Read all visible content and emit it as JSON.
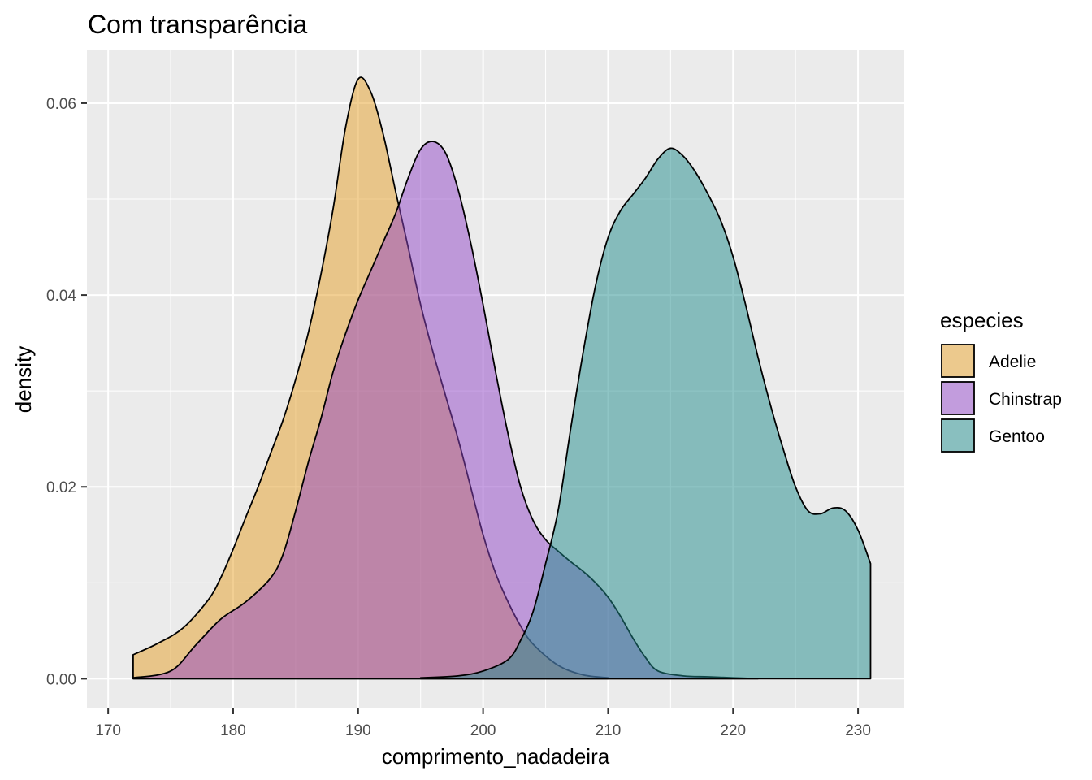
{
  "chart_data": {
    "type": "area",
    "title": "Com transparência",
    "xlabel": "comprimento_nadadeira",
    "ylabel": "density",
    "xlim": [
      168.3,
      233.7
    ],
    "ylim": [
      -0.0031,
      0.0655
    ],
    "x_ticks": [
      170,
      180,
      190,
      200,
      210,
      220,
      230
    ],
    "y_ticks": [
      0.0,
      0.02,
      0.04,
      0.06
    ],
    "x_tick_labels": [
      "170",
      "180",
      "190",
      "200",
      "210",
      "220",
      "230"
    ],
    "y_tick_labels": [
      "0.00",
      "0.02",
      "0.04",
      "0.06"
    ],
    "grid": true,
    "legend": {
      "title": "especies",
      "position": "right"
    },
    "fill_opacity": 0.5,
    "series": [
      {
        "name": "Adelie",
        "color": "#E69F28",
        "points": [
          [
            172,
            0.0025
          ],
          [
            174,
            0.0037
          ],
          [
            176,
            0.0053
          ],
          [
            178,
            0.0082
          ],
          [
            179,
            0.0105
          ],
          [
            180,
            0.0135
          ],
          [
            181,
            0.0168
          ],
          [
            182,
            0.02
          ],
          [
            183,
            0.0235
          ],
          [
            184,
            0.027
          ],
          [
            185,
            0.0312
          ],
          [
            186,
            0.036
          ],
          [
            187,
            0.042
          ],
          [
            188,
            0.049
          ],
          [
            189,
            0.0575
          ],
          [
            190,
            0.0625
          ],
          [
            191,
            0.0612
          ],
          [
            192,
            0.0568
          ],
          [
            193,
            0.0508
          ],
          [
            194,
            0.045
          ],
          [
            195,
            0.039
          ],
          [
            196,
            0.034
          ],
          [
            197,
            0.0295
          ],
          [
            198,
            0.025
          ],
          [
            199,
            0.02
          ],
          [
            200,
            0.015
          ],
          [
            201,
            0.011
          ],
          [
            202,
            0.008
          ],
          [
            203,
            0.0055
          ],
          [
            204,
            0.0036
          ],
          [
            206,
            0.0014
          ],
          [
            208,
            0.0004
          ],
          [
            210,
            0.0001
          ]
        ]
      },
      {
        "name": "Chinstrap",
        "color": "#9245C7",
        "points": [
          [
            172,
            0.0001
          ],
          [
            175,
            0.0008
          ],
          [
            177,
            0.0035
          ],
          [
            179,
            0.0062
          ],
          [
            181,
            0.008
          ],
          [
            183,
            0.0105
          ],
          [
            184,
            0.013
          ],
          [
            185,
            0.0175
          ],
          [
            186,
            0.0225
          ],
          [
            187,
            0.027
          ],
          [
            188,
            0.032
          ],
          [
            189,
            0.036
          ],
          [
            190,
            0.0395
          ],
          [
            191,
            0.0425
          ],
          [
            192,
            0.0455
          ],
          [
            193,
            0.0485
          ],
          [
            194,
            0.0522
          ],
          [
            195,
            0.0552
          ],
          [
            196,
            0.056
          ],
          [
            197,
            0.0548
          ],
          [
            198,
            0.051
          ],
          [
            199,
            0.0455
          ],
          [
            200,
            0.039
          ],
          [
            201,
            0.032
          ],
          [
            202,
            0.0255
          ],
          [
            203,
            0.02
          ],
          [
            204,
            0.0165
          ],
          [
            205,
            0.0145
          ],
          [
            206,
            0.0133
          ],
          [
            207,
            0.0122
          ],
          [
            208,
            0.0112
          ],
          [
            209,
            0.01
          ],
          [
            210,
            0.0085
          ],
          [
            211,
            0.0065
          ],
          [
            212,
            0.0042
          ],
          [
            213,
            0.0022
          ],
          [
            214,
            0.0008
          ],
          [
            216,
            0.0003
          ],
          [
            218,
            0.0002
          ],
          [
            220,
            0.0001
          ],
          [
            222,
            0.0
          ]
        ]
      },
      {
        "name": "Gentoo",
        "color": "#1F8B8B",
        "points": [
          [
            195,
            0.0001
          ],
          [
            198,
            0.0003
          ],
          [
            200,
            0.0008
          ],
          [
            202,
            0.002
          ],
          [
            203,
            0.004
          ],
          [
            204,
            0.007
          ],
          [
            205,
            0.012
          ],
          [
            206,
            0.0175
          ],
          [
            207,
            0.026
          ],
          [
            208,
            0.034
          ],
          [
            209,
            0.041
          ],
          [
            210,
            0.046
          ],
          [
            211,
            0.0488
          ],
          [
            212,
            0.0505
          ],
          [
            213,
            0.0522
          ],
          [
            214,
            0.0542
          ],
          [
            215,
            0.0553
          ],
          [
            216,
            0.0545
          ],
          [
            217,
            0.0528
          ],
          [
            218,
            0.0505
          ],
          [
            219,
            0.0478
          ],
          [
            220,
            0.044
          ],
          [
            221,
            0.039
          ],
          [
            222,
            0.0335
          ],
          [
            223,
            0.0285
          ],
          [
            224,
            0.024
          ],
          [
            225,
            0.02
          ],
          [
            226,
            0.0175
          ],
          [
            227,
            0.0172
          ],
          [
            228,
            0.0178
          ],
          [
            229,
            0.0175
          ],
          [
            230,
            0.0155
          ],
          [
            231,
            0.012
          ]
        ]
      }
    ]
  }
}
